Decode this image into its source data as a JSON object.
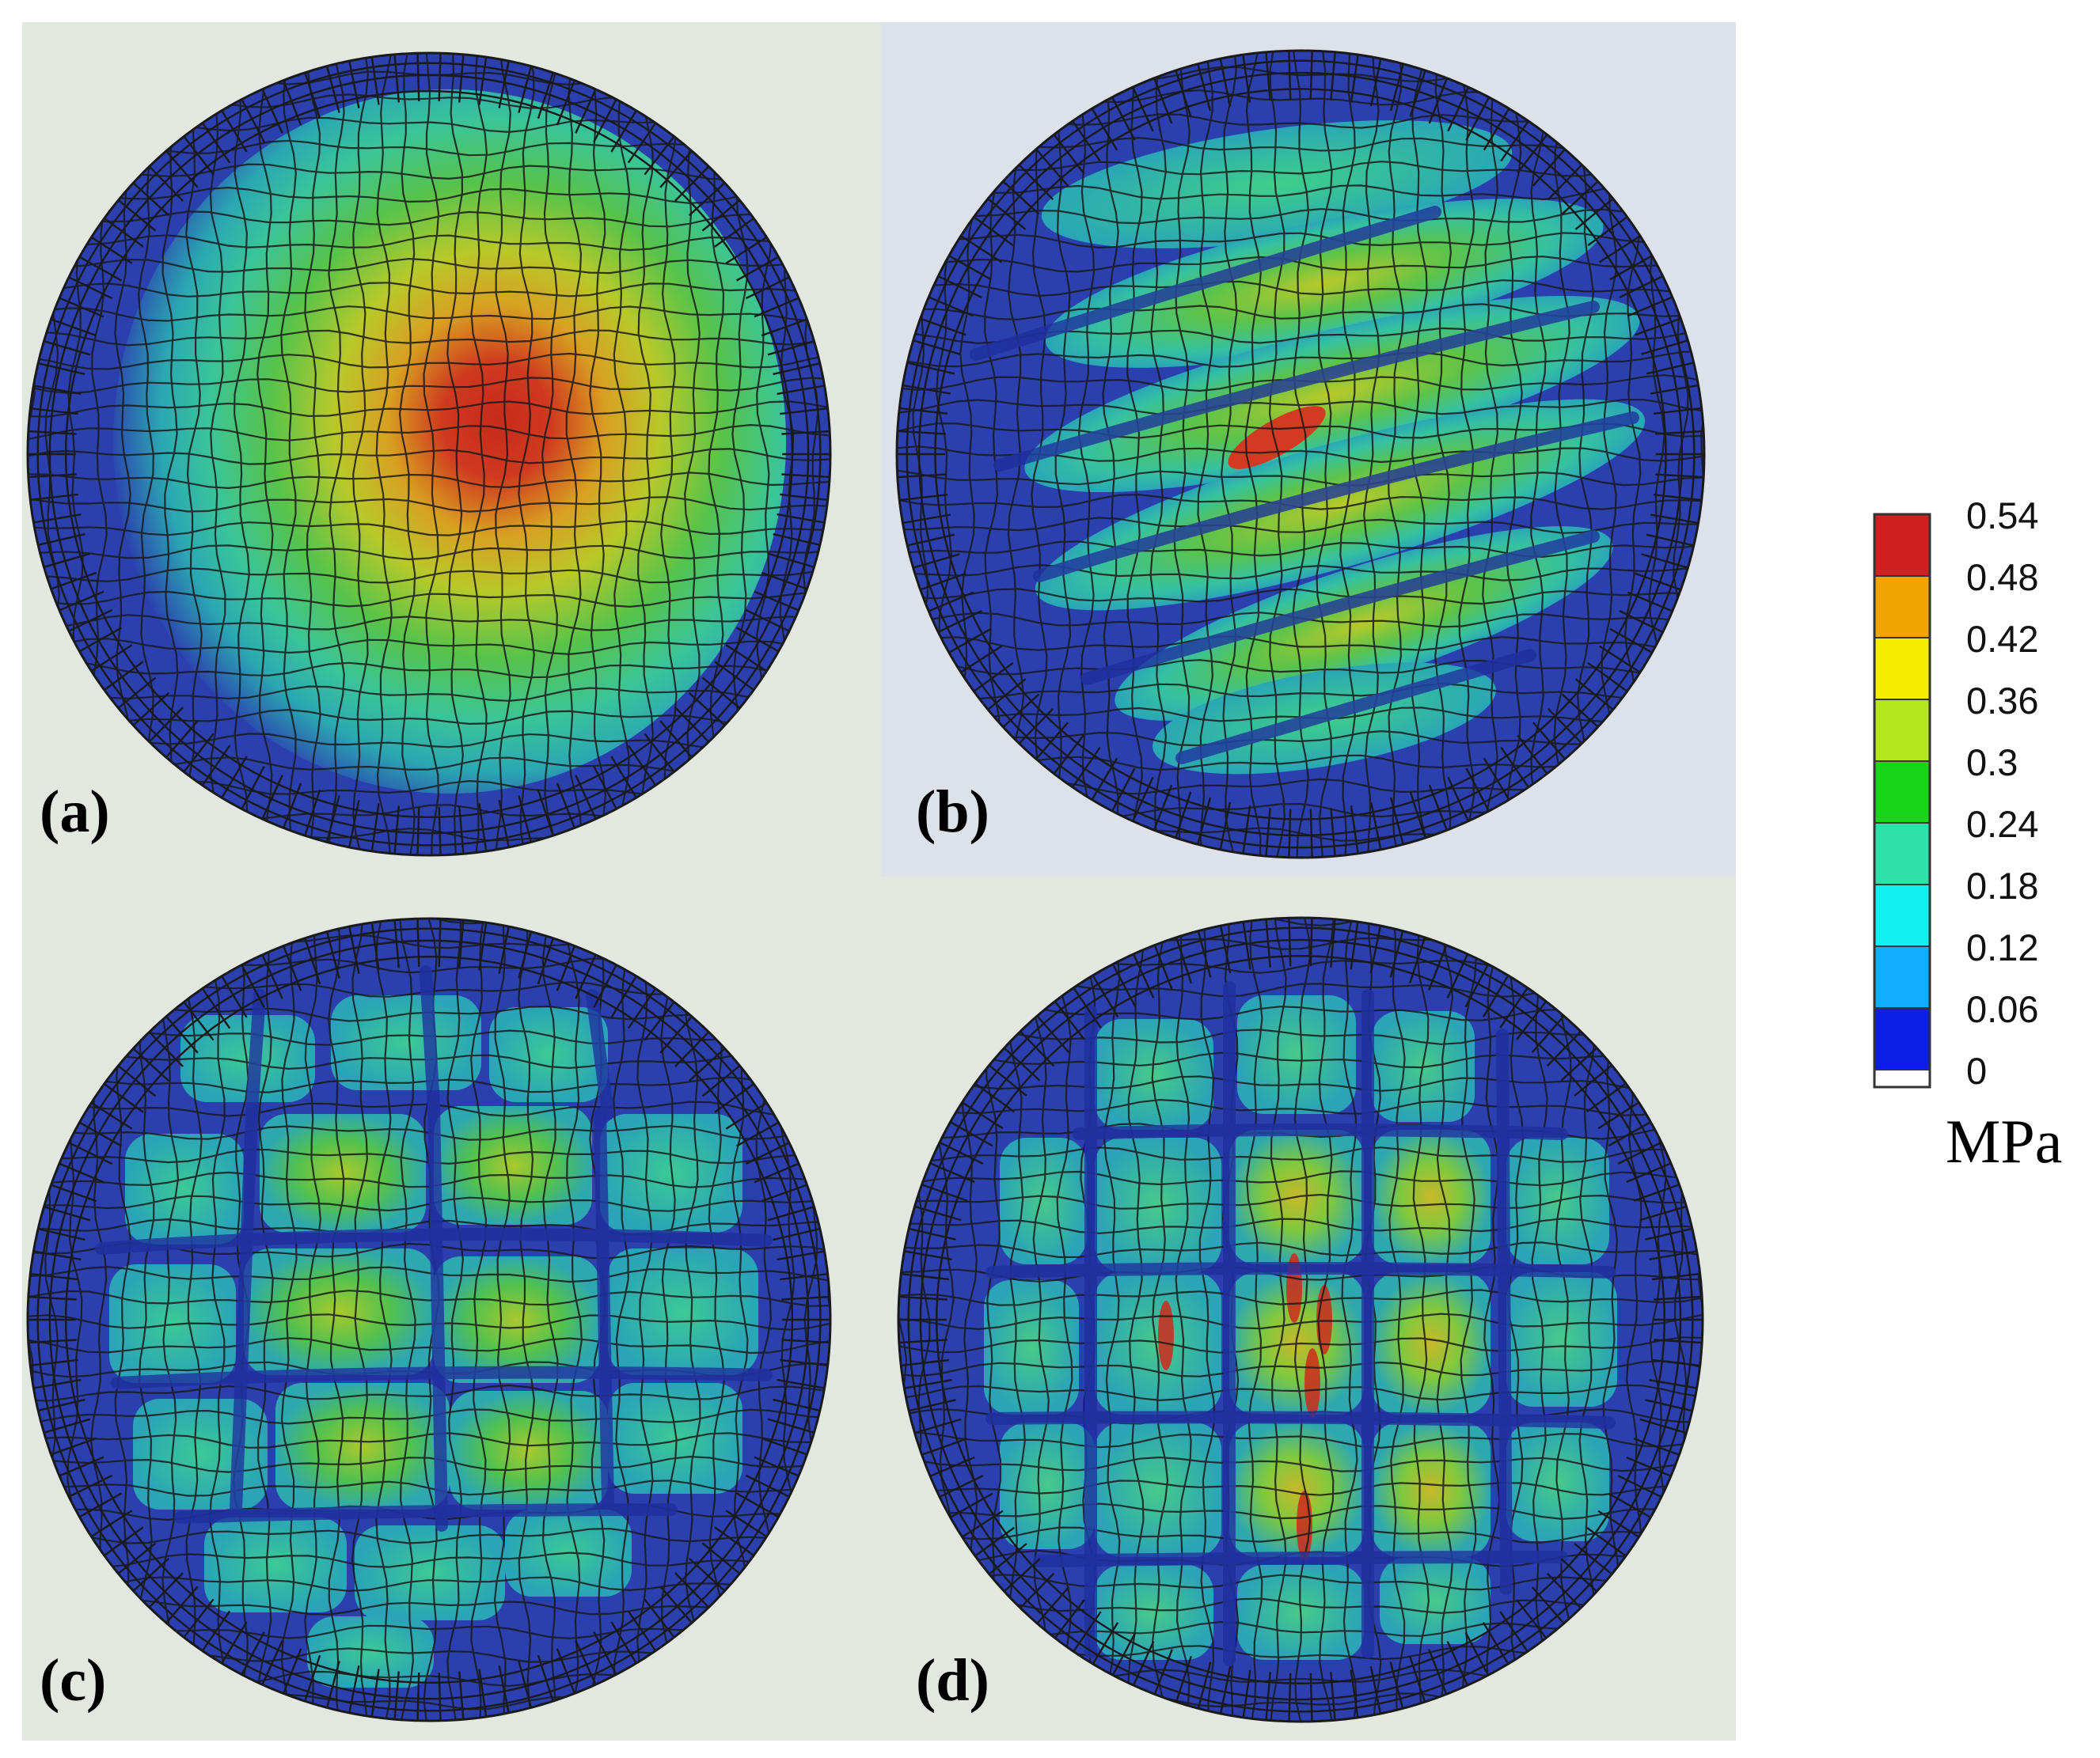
{
  "panels": [
    {
      "id": "a",
      "label_open": "(",
      "label_letter": "a",
      "label_close": ")"
    },
    {
      "id": "b",
      "label_open": "(",
      "label_letter": "b",
      "label_close": ")"
    },
    {
      "id": "c",
      "label_open": "(",
      "label_letter": "c",
      "label_close": ")"
    },
    {
      "id": "d",
      "label_open": "(",
      "label_letter": "d",
      "label_close": ")"
    }
  ],
  "legend": {
    "unit": "MPa",
    "ticks": [
      "0.54",
      "0.48",
      "0.42",
      "0.36",
      "0.3",
      "0.24",
      "0.18",
      "0.12",
      "0.06",
      "0"
    ],
    "colors": [
      "#d11f1f",
      "#f0a500",
      "#f5ec00",
      "#b3e61c",
      "#19d419",
      "#2fe0a8",
      "#13f0f0",
      "#10aeff",
      "#0a1ee6",
      "#ffffff"
    ]
  },
  "colors": {
    "disk_edge": "#2b3fae",
    "mesh_line": "#1a1a1a"
  }
}
